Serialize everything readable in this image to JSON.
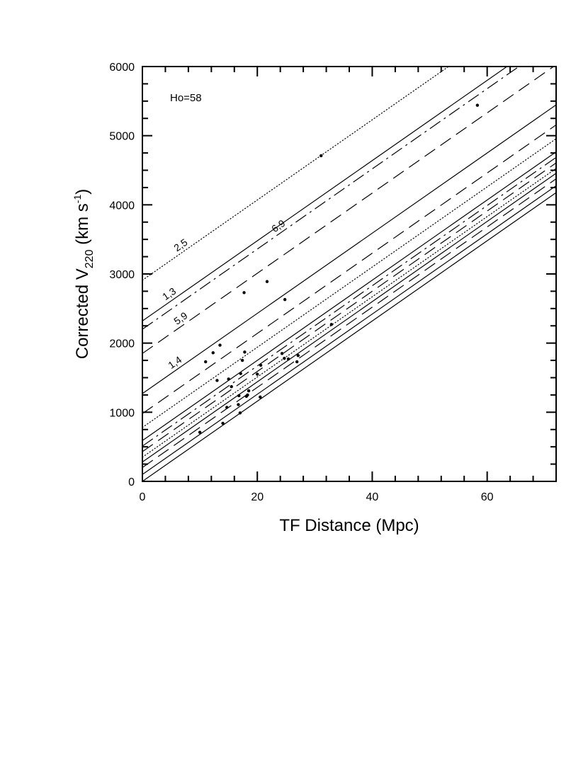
{
  "chart_data": {
    "type": "scatter",
    "title": "",
    "xlabel": "TF Distance (Mpc)",
    "ylabel": {
      "main": "Corrected V",
      "sub": "220",
      "unit_pre": " (km s",
      "sup": "-1",
      "unit_post": ")"
    },
    "xlim": [
      0,
      72
    ],
    "ylim": [
      0,
      6000
    ],
    "xticks": [
      0,
      20,
      40,
      60
    ],
    "yticks": [
      0,
      1000,
      2000,
      3000,
      4000,
      5000,
      6000
    ],
    "grid": false,
    "annotation": "Ho=58",
    "hubble_constant": 58,
    "points": [
      {
        "x": 10,
        "y": 710
      },
      {
        "x": 11,
        "y": 1730
      },
      {
        "x": 12.3,
        "y": 1860
      },
      {
        "x": 13,
        "y": 1460
      },
      {
        "x": 13.5,
        "y": 1970
      },
      {
        "x": 14,
        "y": 840
      },
      {
        "x": 14.7,
        "y": 1070
      },
      {
        "x": 15,
        "y": 1480
      },
      {
        "x": 15.5,
        "y": 1370
      },
      {
        "x": 16.7,
        "y": 1110
      },
      {
        "x": 16.8,
        "y": 1240
      },
      {
        "x": 17,
        "y": 990
      },
      {
        "x": 17.1,
        "y": 1560
      },
      {
        "x": 17.4,
        "y": 1750
      },
      {
        "x": 17.7,
        "y": 2730
      },
      {
        "x": 17.8,
        "y": 1870
      },
      {
        "x": 18.1,
        "y": 1230
      },
      {
        "x": 18.3,
        "y": 1250
      },
      {
        "x": 18.5,
        "y": 1310
      },
      {
        "x": 20,
        "y": 1550
      },
      {
        "x": 20.5,
        "y": 1220
      },
      {
        "x": 20.6,
        "y": 1680
      },
      {
        "x": 21.7,
        "y": 2890
      },
      {
        "x": 24.3,
        "y": 1850
      },
      {
        "x": 24.7,
        "y": 1780
      },
      {
        "x": 24.8,
        "y": 2630
      },
      {
        "x": 25.4,
        "y": 1770
      },
      {
        "x": 26.9,
        "y": 1730
      },
      {
        "x": 27.1,
        "y": 1820
      },
      {
        "x": 32.9,
        "y": 2270
      },
      {
        "x": 31.1,
        "y": 4710
      },
      {
        "x": 58.3,
        "y": 5440
      }
    ],
    "series": [
      {
        "label": "2,5",
        "intercept": 2910,
        "style": "dotted"
      },
      {
        "label": "1,3",
        "intercept": 2320,
        "style": "solid"
      },
      {
        "label": "6,9",
        "intercept": 2200,
        "style": "dashdot"
      },
      {
        "label": "5,9",
        "intercept": 1850,
        "style": "longdash"
      },
      {
        "label": "1,4",
        "intercept": 1270,
        "style": "solid"
      },
      {
        "label": "",
        "intercept": 980,
        "style": "longdash"
      },
      {
        "label": "",
        "intercept": 780,
        "style": "dotted"
      },
      {
        "label": "",
        "intercept": 590,
        "style": "solid"
      },
      {
        "label": "",
        "intercept": 510,
        "style": "dashdot"
      },
      {
        "label": "",
        "intercept": 430,
        "style": "longdash"
      },
      {
        "label": "",
        "intercept": 350,
        "style": "dotted"
      },
      {
        "label": "",
        "intercept": 280,
        "style": "solid"
      },
      {
        "label": "",
        "intercept": 200,
        "style": "longdash"
      },
      {
        "label": "",
        "intercept": 100,
        "style": "solid"
      },
      {
        "label": "",
        "intercept": 0,
        "style": "solid"
      }
    ]
  }
}
